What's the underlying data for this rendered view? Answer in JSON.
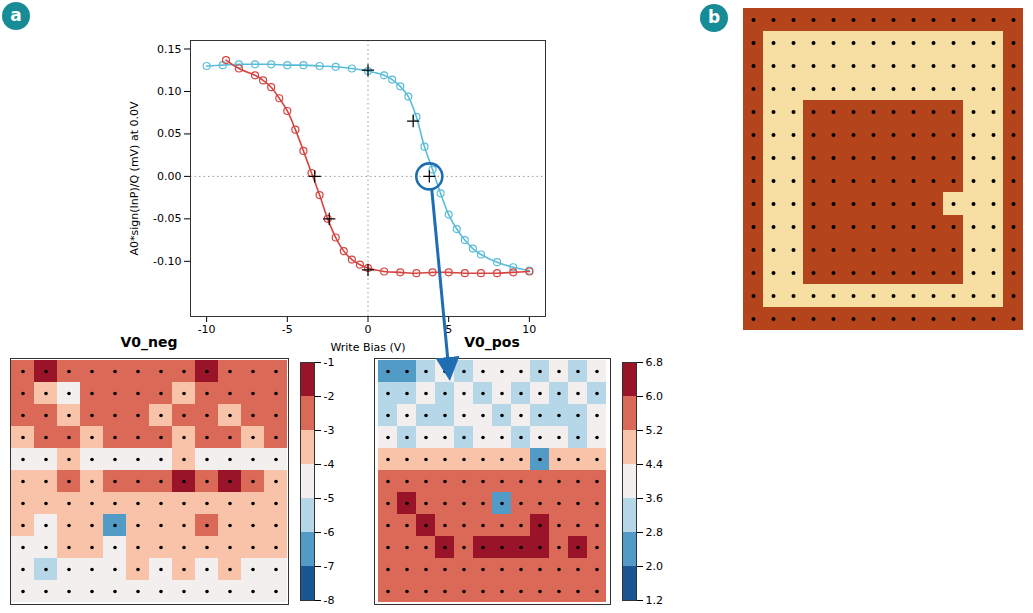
{
  "chart_data": [
    {
      "type": "line",
      "panel": "a",
      "xlabel": "Write Bias (V)",
      "ylabel": "A0*sign(InP)/Q (mV) at 0.0V",
      "xlim": [
        -11,
        11
      ],
      "ylim": [
        -0.165,
        0.16
      ],
      "xticks": [
        -10,
        -5,
        0,
        5,
        10
      ],
      "yticks": [
        {
          "value": -0.1,
          "label": "-0.10"
        },
        -0.05,
        {
          "value": 0,
          "label": "0.00"
        },
        0.05,
        {
          "value": 0.1,
          "label": "0.10"
        },
        0.15
      ],
      "grid": false,
      "reference_lines": {
        "x": 0,
        "y": 0
      },
      "highlight": {
        "x": 3.8,
        "y": 0,
        "color": "#1f6db3"
      },
      "series": [
        {
          "color": "#5bbcd9",
          "marker": "circle",
          "line_style": "solid",
          "x": [
            -10,
            -9,
            -8,
            -7,
            -6,
            -5,
            -4,
            -3,
            -2,
            -1,
            0,
            1,
            1.5,
            2,
            2.5,
            3,
            3.5,
            4,
            4.5,
            5,
            5.5,
            6,
            6.5,
            7,
            8,
            9,
            10
          ],
          "values": [
            0.13,
            0.131,
            0.132,
            0.132,
            0.132,
            0.131,
            0.131,
            0.13,
            0.129,
            0.127,
            0.124,
            0.119,
            0.114,
            0.106,
            0.094,
            0.07,
            0.035,
            0.008,
            -0.02,
            -0.045,
            -0.062,
            -0.075,
            -0.085,
            -0.092,
            -0.101,
            -0.107,
            -0.111
          ]
        },
        {
          "color": "#d64541",
          "marker": "circle",
          "line_style": "solid",
          "x": [
            10,
            9,
            8,
            7,
            6,
            5,
            4,
            3,
            2,
            1,
            0,
            -0.5,
            -1,
            -1.5,
            -2,
            -2.5,
            -3,
            -3.5,
            -4,
            -4.5,
            -5,
            -5.5,
            -6,
            -6.5,
            -7,
            -8,
            -8.8
          ],
          "values": [
            -0.112,
            -0.113,
            -0.114,
            -0.114,
            -0.114,
            -0.113,
            -0.113,
            -0.114,
            -0.113,
            -0.112,
            -0.108,
            -0.104,
            -0.098,
            -0.088,
            -0.072,
            -0.05,
            -0.022,
            0.004,
            0.03,
            0.055,
            0.077,
            0.092,
            0.105,
            0.113,
            0.119,
            0.127,
            0.137
          ]
        },
        {
          "color": "#000000",
          "marker": "plus",
          "line_style": "none",
          "x": [
            0,
            2.8,
            3.8,
            -3.3,
            -2.4,
            0
          ],
          "values": [
            0.125,
            0.065,
            0.0,
            0.0,
            -0.05,
            -0.11
          ]
        }
      ]
    },
    {
      "type": "heatmap",
      "panel": "a",
      "title": "V0_neg",
      "colorbar": {
        "lim": [
          -8,
          -1
        ],
        "ticks": [
          -8,
          -7,
          -6,
          -5,
          -4,
          -3,
          -2,
          -1
        ]
      },
      "cells": [
        [
          -2.5,
          -2,
          -3,
          -2.5,
          -3,
          -2.5,
          -2.5,
          -3,
          -2,
          -2.5,
          -3,
          -2.5
        ],
        [
          -3,
          -3.5,
          -5,
          -3,
          -3,
          -2.5,
          -3,
          -3.5,
          -3,
          -3,
          -2.5,
          -3
        ],
        [
          -3,
          -3,
          -3.5,
          -3,
          -3,
          -3,
          -3.5,
          -3,
          -3,
          -3.5,
          -3,
          -3
        ],
        [
          -3.5,
          -3,
          -3,
          -3.5,
          -3,
          -3,
          -3,
          -3.5,
          -3,
          -3,
          -3.5,
          -3
        ],
        [
          -4.5,
          -4.5,
          -4,
          -4.5,
          -4.5,
          -4.5,
          -4.5,
          -4,
          -4.5,
          -4.5,
          -4.5,
          -4.5
        ],
        [
          -3.5,
          -3.5,
          -3,
          -3.5,
          -3,
          -3,
          -3,
          -1.5,
          -3,
          -1.5,
          -3,
          -3.5
        ],
        [
          -4,
          -3.5,
          -4,
          -3.5,
          -4,
          -3.5,
          -4,
          -3.5,
          -4,
          -3.5,
          -4,
          -4
        ],
        [
          -4,
          -4.5,
          -4,
          -3.5,
          -6.5,
          -4,
          -3.5,
          -3.5,
          -3,
          -3.5,
          -4,
          -3.5
        ],
        [
          -5,
          -4.5,
          -4,
          -4,
          -4.5,
          -4,
          -3.5,
          -4,
          -3.5,
          -3.5,
          -4,
          -4
        ],
        [
          -5,
          -5.5,
          -5,
          -4.5,
          -4.5,
          -4,
          -4.5,
          -4,
          -4.5,
          -4,
          -4.5,
          -4.5
        ],
        [
          -4.5,
          -5,
          -4.5,
          -5,
          -4.5,
          -5,
          -4.5,
          -5,
          -4.5,
          -5,
          -4.5,
          -5
        ]
      ]
    },
    {
      "type": "heatmap",
      "panel": "a",
      "title": "V0_pos",
      "colorbar": {
        "lim": [
          1.2,
          6.8
        ],
        "ticks": [
          1.2,
          {
            "value": 2,
            "label": "2.0"
          },
          2.8,
          3.6,
          4.4,
          5.2,
          {
            "value": 6,
            "label": "6.0"
          },
          6.8
        ]
      },
      "cells": [
        [
          2.0,
          2.4,
          3.2,
          3.6,
          3.2,
          3.6,
          4.0,
          3.6,
          3.2,
          3.6,
          3.2,
          3.6
        ],
        [
          2.8,
          3.2,
          3.6,
          3.2,
          3.6,
          3.2,
          3.6,
          3.2,
          3.6,
          3.2,
          3.6,
          3.2
        ],
        [
          3.2,
          3.6,
          3.2,
          2.8,
          3.6,
          3.6,
          3.2,
          3.6,
          3.2,
          2.8,
          3.2,
          3.6
        ],
        [
          3.6,
          3.2,
          3.6,
          3.6,
          3.2,
          3.6,
          4.0,
          3.2,
          3.6,
          3.6,
          3.2,
          3.6
        ],
        [
          4.4,
          4.8,
          4.4,
          4.8,
          4.8,
          4.4,
          4.8,
          4.4,
          2.4,
          4.8,
          4.4,
          4.8
        ],
        [
          5.2,
          5.6,
          5.2,
          5.6,
          5.2,
          5.6,
          5.2,
          5.6,
          5.2,
          5.6,
          5.2,
          5.6
        ],
        [
          5.6,
          6.8,
          5.6,
          5.2,
          5.6,
          5.2,
          2.4,
          5.2,
          5.6,
          5.2,
          5.6,
          5.2
        ],
        [
          5.2,
          5.6,
          6.0,
          5.6,
          5.2,
          5.6,
          5.6,
          5.2,
          6.0,
          5.6,
          5.2,
          5.6
        ],
        [
          5.6,
          5.2,
          5.6,
          6.0,
          5.6,
          6.0,
          6.4,
          6.8,
          6.0,
          5.6,
          6.0,
          5.6
        ],
        [
          5.2,
          5.6,
          5.2,
          5.6,
          5.2,
          5.6,
          5.2,
          5.6,
          5.2,
          5.6,
          5.2,
          5.2
        ],
        [
          5.6,
          5.2,
          5.6,
          5.2,
          5.6,
          5.2,
          5.6,
          5.2,
          5.6,
          5.2,
          5.6,
          5.2
        ]
      ]
    },
    {
      "type": "map",
      "panel": "b",
      "colors": [
        "#f7dfa3",
        "#b3441c"
      ],
      "cells": [
        [
          1,
          1,
          1,
          1,
          1,
          1,
          1,
          1,
          1,
          1,
          1,
          1,
          1,
          1
        ],
        [
          1,
          0,
          0,
          0,
          0,
          0,
          0,
          0,
          0,
          0,
          0,
          0,
          0,
          1
        ],
        [
          1,
          0,
          0,
          0,
          0,
          0,
          0,
          0,
          0,
          0,
          0,
          0,
          0,
          1
        ],
        [
          1,
          0,
          0,
          0,
          0,
          0,
          0,
          0,
          0,
          0,
          0,
          0,
          0,
          1
        ],
        [
          1,
          0,
          0,
          1,
          1,
          1,
          1,
          1,
          1,
          1,
          1,
          0,
          0,
          1
        ],
        [
          1,
          0,
          0,
          1,
          1,
          1,
          1,
          1,
          1,
          1,
          1,
          0,
          0,
          1
        ],
        [
          1,
          0,
          0,
          1,
          1,
          1,
          1,
          1,
          1,
          1,
          1,
          0,
          0,
          1
        ],
        [
          1,
          0,
          0,
          1,
          1,
          1,
          1,
          1,
          1,
          1,
          1,
          0,
          0,
          1
        ],
        [
          1,
          0,
          0,
          1,
          1,
          1,
          1,
          1,
          1,
          1,
          0,
          0,
          0,
          1
        ],
        [
          1,
          0,
          0,
          1,
          1,
          1,
          1,
          1,
          1,
          1,
          1,
          0,
          0,
          1
        ],
        [
          1,
          0,
          0,
          1,
          1,
          1,
          1,
          1,
          1,
          1,
          1,
          0,
          0,
          1
        ],
        [
          1,
          0,
          0,
          1,
          1,
          1,
          1,
          1,
          1,
          1,
          1,
          0,
          0,
          1
        ],
        [
          1,
          0,
          0,
          0,
          0,
          0,
          0,
          0,
          0,
          0,
          0,
          0,
          0,
          1
        ],
        [
          1,
          1,
          1,
          1,
          1,
          1,
          1,
          1,
          1,
          1,
          1,
          1,
          1,
          1
        ]
      ]
    }
  ]
}
